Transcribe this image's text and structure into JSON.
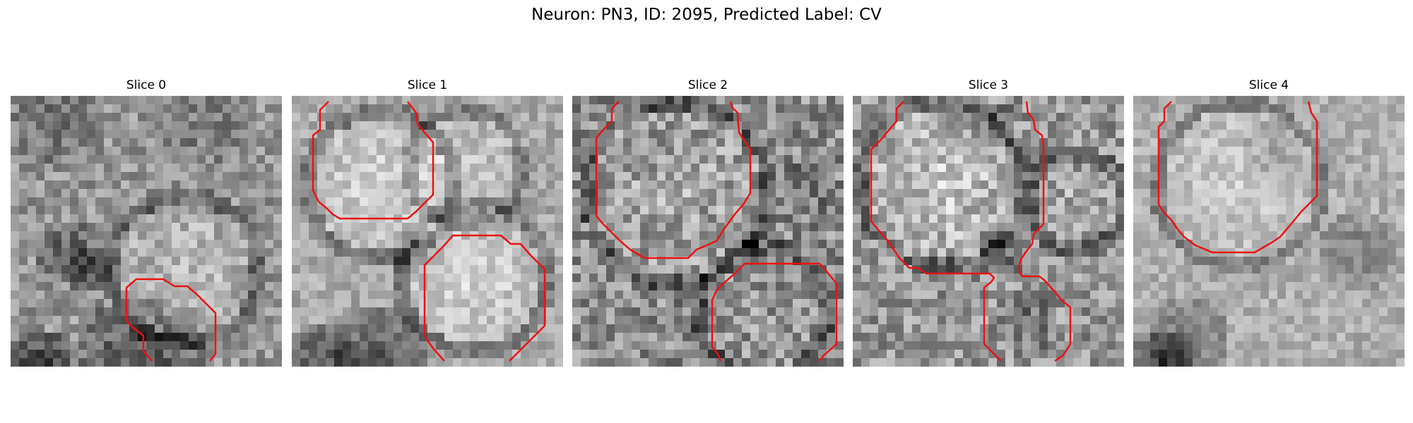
{
  "figure": {
    "title": "Neuron: PN3, ID: 2095, Predicted Label: CV"
  },
  "colors": {
    "contour": "#ee1111"
  },
  "slices": [
    {
      "title": "Slice 0"
    },
    {
      "title": "Slice 1"
    },
    {
      "title": "Slice 2"
    },
    {
      "title": "Slice 3"
    },
    {
      "title": "Slice 4"
    }
  ]
}
